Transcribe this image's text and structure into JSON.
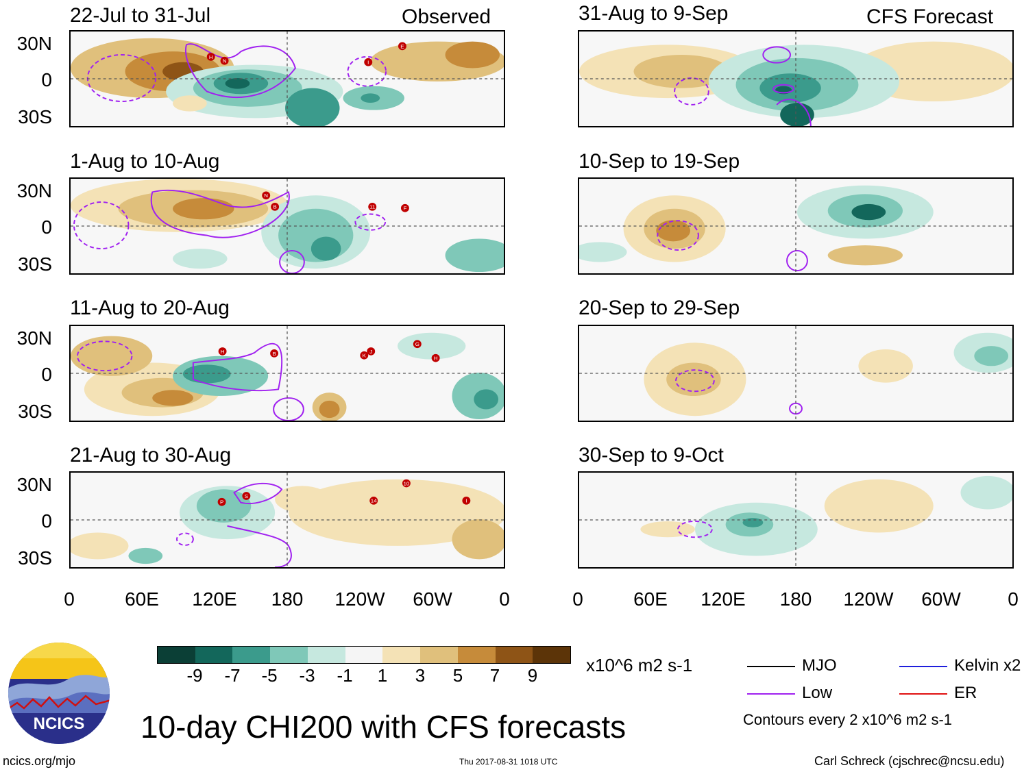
{
  "observed_label": "Observed",
  "forecast_label": "CFS Forecast",
  "panels_left": [
    {
      "title": "22-Jul to 31-Jul"
    },
    {
      "title": "1-Aug to 10-Aug"
    },
    {
      "title": "11-Aug to 20-Aug"
    },
    {
      "title": "21-Aug to 30-Aug"
    }
  ],
  "panels_right": [
    {
      "title": "31-Aug to 9-Sep"
    },
    {
      "title": "10-Sep to 19-Sep"
    },
    {
      "title": "20-Sep to 29-Sep"
    },
    {
      "title": "30-Sep to 9-Oct"
    }
  ],
  "y_ticks": [
    "30N",
    "0",
    "30S"
  ],
  "x_ticks": [
    "0",
    "60E",
    "120E",
    "180",
    "120W",
    "60W",
    "0"
  ],
  "colorbar": {
    "labels": [
      "-9",
      "-7",
      "-5",
      "-3",
      "-1",
      "1",
      "3",
      "5",
      "7",
      "9"
    ],
    "units": "x10^6 m2 s-1",
    "colors": [
      "#0b3f36",
      "#13675b",
      "#3b9b8c",
      "#7fc8b8",
      "#c6e8df",
      "#f5f5f5",
      "#f4e2b6",
      "#e0c07c",
      "#c68b3a",
      "#8e5416",
      "#5c3408"
    ]
  },
  "legend": {
    "items": [
      {
        "label": "MJO",
        "color": "#000000"
      },
      {
        "label": "Kelvin x2",
        "color": "#1e1edc"
      },
      {
        "label": "Low",
        "color": "#a020f0"
      },
      {
        "label": "ER",
        "color": "#e01010"
      }
    ],
    "contours_note": "Contours every 2 x10^6 m2 s-1"
  },
  "main_title": "10-day CHI200 with CFS forecasts",
  "logo_text": "NCICS",
  "footer": {
    "website": "ncics.org/mjo",
    "timestamp": "Thu 2017-08-31 1018 UTC",
    "credit": "Carl Schreck (cjschrec@ncsu.edu)"
  },
  "storms": {
    "p0": [
      "H",
      "N",
      "I",
      "E"
    ],
    "p1": [
      "N",
      "B",
      "11",
      "F"
    ],
    "p2": [
      "H",
      "B",
      "K",
      "J",
      "G",
      "H"
    ],
    "p3": [
      "P",
      "S",
      "14",
      "10",
      "I"
    ]
  }
}
